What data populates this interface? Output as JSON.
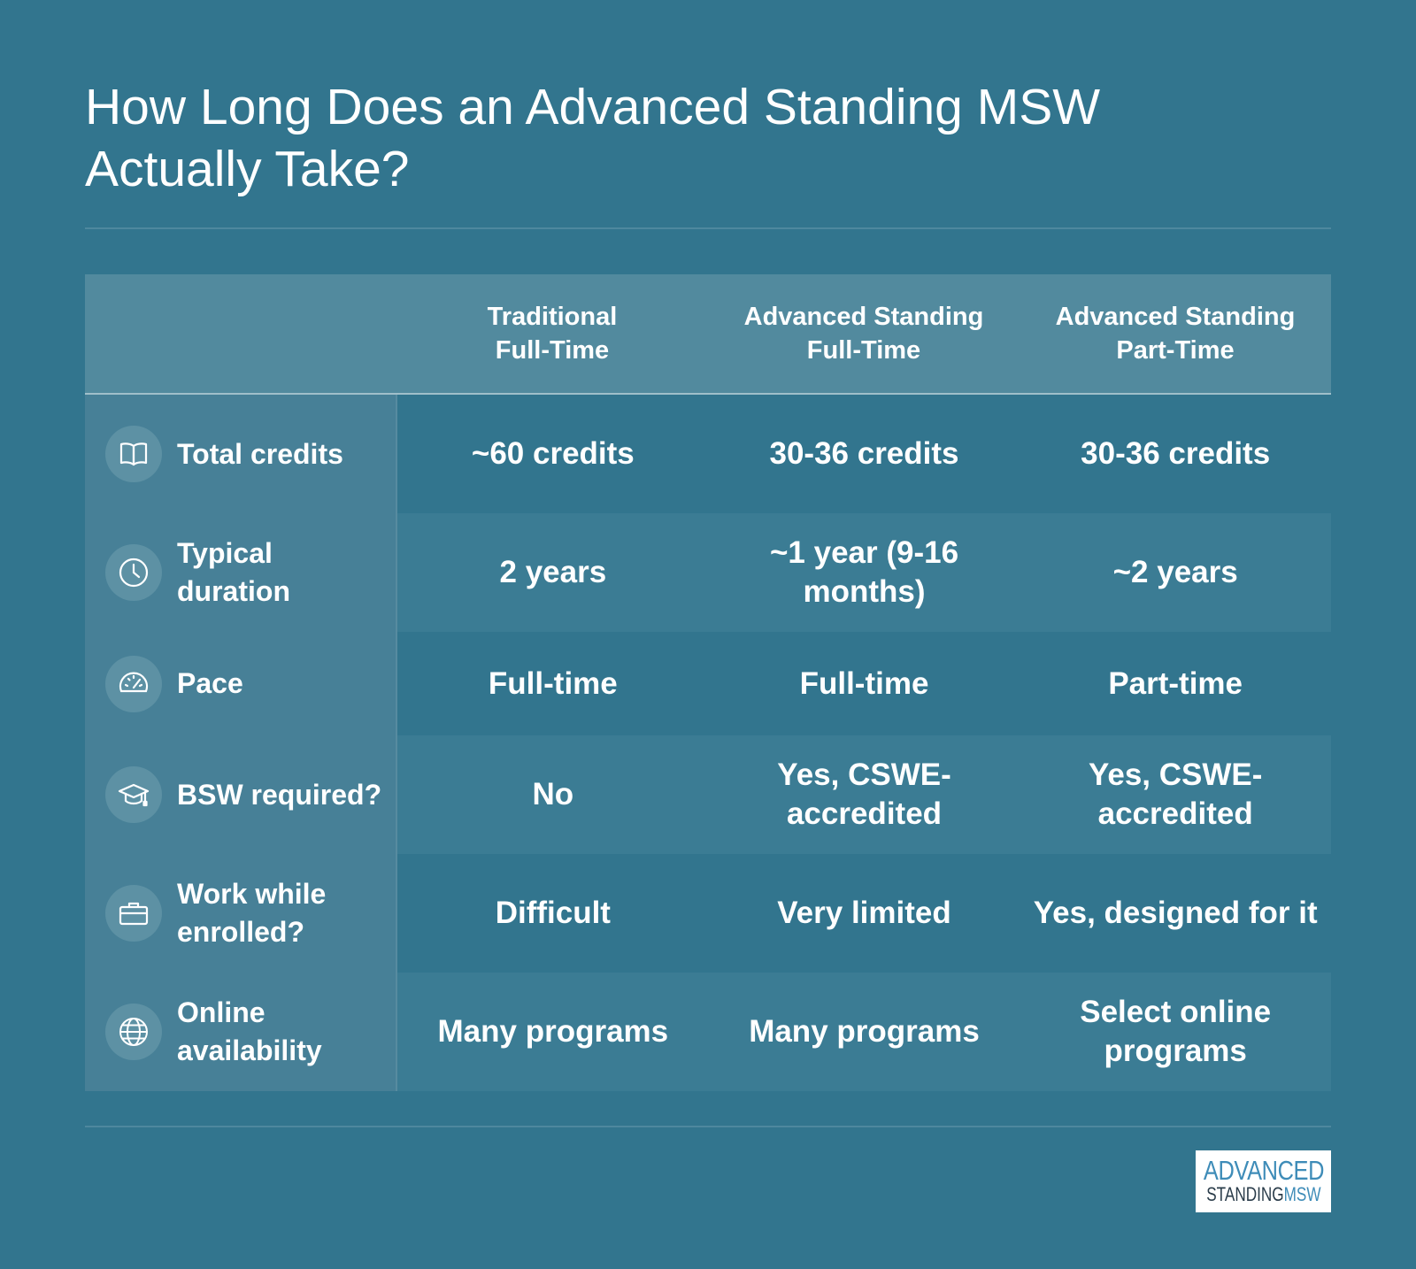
{
  "title": "How Long Does an Advanced Standing MSW Actually Take?",
  "columns": [
    "Traditional\nFull-Time",
    "Advanced Standing\nFull-Time",
    "Advanced Standing\nPart-Time"
  ],
  "rows": [
    {
      "icon": "book-icon",
      "label": "Total credits",
      "values": [
        "~60 credits",
        "30-36 credits",
        "30-36 credits"
      ]
    },
    {
      "icon": "clock-icon",
      "label": "Typical duration",
      "values": [
        "2 years",
        "~1 year (9-16 months)",
        "~2 years"
      ]
    },
    {
      "icon": "speedometer-icon",
      "label": "Pace",
      "values": [
        "Full-time",
        "Full-time",
        "Part-time"
      ]
    },
    {
      "icon": "graduation-cap-icon",
      "label": "BSW required?",
      "values": [
        "No",
        "Yes, CSWE-accredited",
        "Yes, CSWE-accredited"
      ]
    },
    {
      "icon": "briefcase-icon",
      "label": "Work while enrolled?",
      "values": [
        "Difficult",
        "Very limited",
        "Yes, designed for it"
      ]
    },
    {
      "icon": "globe-icon",
      "label": "Online availability",
      "values": [
        "Many programs",
        "Many programs",
        "Select online programs"
      ]
    }
  ],
  "logo": {
    "line1": "ADVANCED",
    "line2a": "STANDING",
    "line2b": "MSW"
  },
  "colors": {
    "background": "#32758e",
    "header": "#528a9e",
    "label_column": "#478097",
    "logo_blue": "#3e8cb8"
  }
}
